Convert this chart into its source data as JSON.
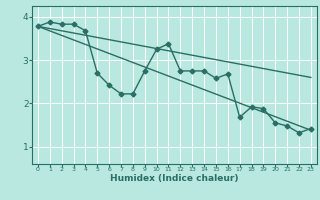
{
  "xlabel": "Humidex (Indice chaleur)",
  "ylabel": "",
  "background_color": "#b8e8e0",
  "grid_color": "#ffffff",
  "line_color": "#2a6e64",
  "xlim": [
    -0.5,
    23.5
  ],
  "ylim": [
    0.6,
    4.25
  ],
  "yticks": [
    1,
    2,
    3,
    4
  ],
  "xticks": [
    0,
    1,
    2,
    3,
    4,
    5,
    6,
    7,
    8,
    9,
    10,
    11,
    12,
    13,
    14,
    15,
    16,
    17,
    18,
    19,
    20,
    21,
    22,
    23
  ],
  "curve1_x": [
    0,
    1,
    2,
    3,
    4,
    5,
    6,
    7,
    8,
    9,
    10,
    11,
    12,
    13,
    14,
    15,
    16,
    17,
    18,
    19,
    20,
    21,
    22,
    23
  ],
  "curve1_y": [
    3.78,
    3.88,
    3.83,
    3.83,
    3.68,
    2.7,
    2.42,
    2.22,
    2.22,
    2.75,
    3.25,
    3.38,
    2.75,
    2.75,
    2.75,
    2.58,
    2.68,
    1.68,
    1.92,
    1.88,
    1.55,
    1.48,
    1.32,
    1.42
  ],
  "trend1_x": [
    0,
    23
  ],
  "trend1_y": [
    3.78,
    2.6
  ],
  "trend2_x": [
    0,
    23
  ],
  "trend2_y": [
    3.78,
    1.38
  ],
  "marker_size": 2.5
}
